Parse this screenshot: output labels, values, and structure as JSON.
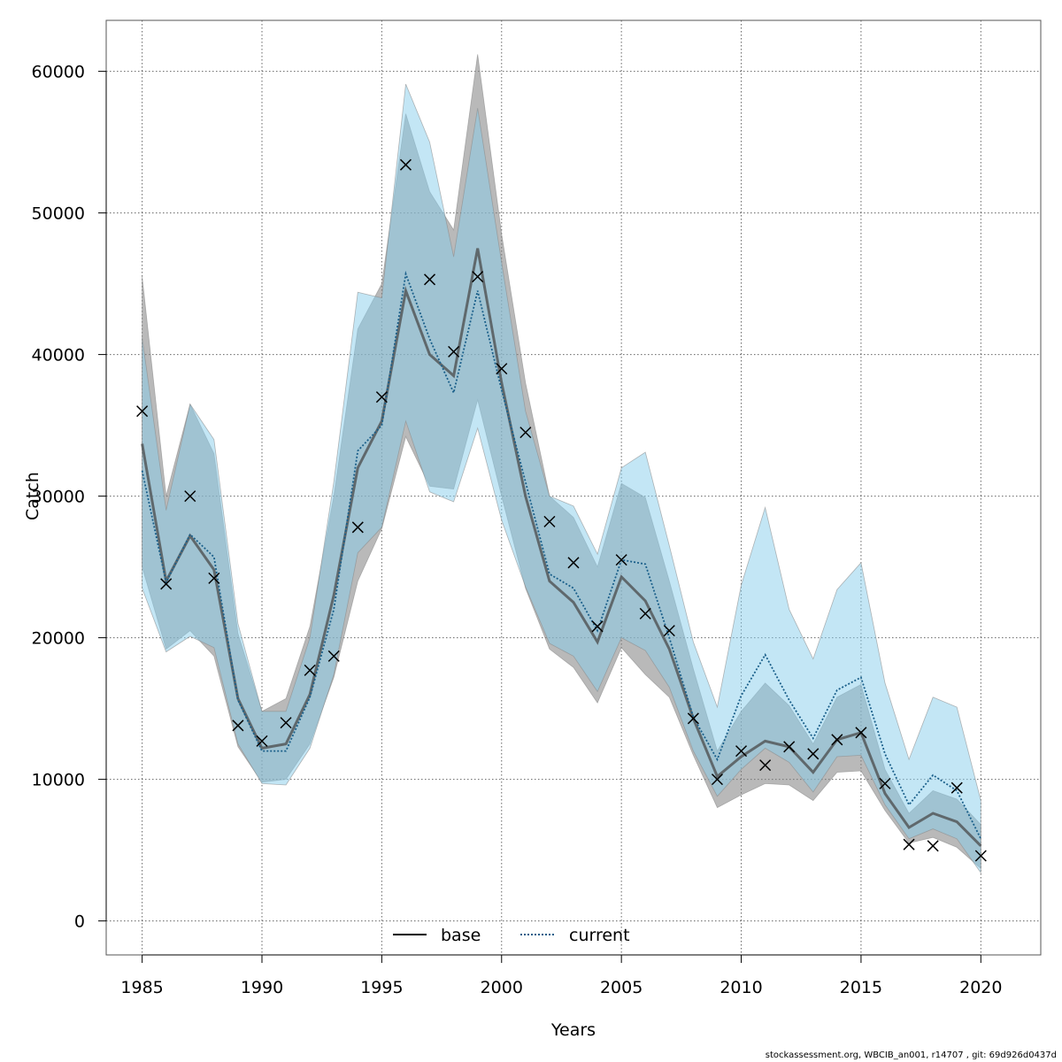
{
  "chart_data": {
    "type": "line",
    "xlabel": "Years",
    "ylabel": "Catch",
    "xlim": [
      1983.5,
      2022.5
    ],
    "ylim": [
      -2400,
      63600
    ],
    "x_ticks": [
      1985,
      1990,
      1995,
      2000,
      2005,
      2010,
      2015,
      2020
    ],
    "y_ticks": [
      0,
      10000,
      20000,
      30000,
      40000,
      50000,
      60000
    ],
    "grid": true,
    "legend_position": "bottom",
    "x": [
      1985,
      1986,
      1987,
      1988,
      1989,
      1990,
      1991,
      1992,
      1993,
      1994,
      1995,
      1996,
      1997,
      1998,
      1999,
      2000,
      2001,
      2002,
      2003,
      2004,
      2005,
      2006,
      2007,
      2008,
      2009,
      2010,
      2011,
      2012,
      2013,
      2014,
      2015,
      2016,
      2017,
      2018,
      2019,
      2020
    ],
    "observed": [
      36000,
      23800,
      30000,
      24200,
      13800,
      12700,
      14000,
      17700,
      18700,
      27800,
      37000,
      53400,
      45300,
      40200,
      45500,
      39000,
      34500,
      28200,
      25300,
      20800,
      25500,
      21700,
      20500,
      14300,
      10000,
      12000,
      11000,
      12300,
      11800,
      12800,
      13300,
      9700,
      5400,
      5300,
      9400,
      4600
    ],
    "series": [
      {
        "name": "base",
        "color": "#000000",
        "band_color": "#808080",
        "values": [
          33700,
          24000,
          27200,
          24800,
          15700,
          12200,
          12500,
          16000,
          23000,
          32000,
          35300,
          44500,
          40000,
          38500,
          47500,
          38000,
          30000,
          24000,
          22500,
          19700,
          24300,
          22600,
          19200,
          14300,
          10200,
          11600,
          12700,
          12300,
          10500,
          12800,
          13300,
          9000,
          6600,
          7600,
          7000,
          5300
        ],
        "lower": [
          25000,
          19200,
          20500,
          18700,
          12300,
          9800,
          10000,
          12500,
          17200,
          24000,
          27700,
          34200,
          30700,
          30500,
          36800,
          30000,
          23500,
          19200,
          17900,
          15400,
          19300,
          17400,
          15800,
          11700,
          8000,
          8900,
          9700,
          9600,
          8500,
          10500,
          10600,
          7800,
          5500,
          5900,
          5200,
          3700
        ],
        "upper": [
          45500,
          30000,
          36500,
          33000,
          20300,
          14800,
          15700,
          20800,
          30000,
          41800,
          45000,
          57000,
          51500,
          48800,
          61200,
          48500,
          38000,
          30000,
          28500,
          25000,
          30900,
          29900,
          24000,
          17800,
          12000,
          14800,
          16800,
          15200,
          12500,
          15800,
          16700,
          10700,
          7600,
          9200,
          8600,
          6800
        ]
      },
      {
        "name": "current",
        "color": "#1a5f8a",
        "band_color": "#87ceeb",
        "values": [
          31800,
          23900,
          27300,
          25700,
          15600,
          12000,
          12000,
          15800,
          22000,
          33200,
          35000,
          45700,
          41100,
          37300,
          44500,
          37500,
          31000,
          24500,
          23500,
          20500,
          25500,
          25200,
          20000,
          14400,
          11400,
          15900,
          18800,
          15600,
          12900,
          16300,
          17200,
          11800,
          8200,
          10300,
          9200,
          5800
        ],
        "lower": [
          23500,
          19000,
          20100,
          19300,
          12500,
          9700,
          9600,
          12200,
          17400,
          26000,
          27800,
          35300,
          30300,
          29600,
          34800,
          28300,
          23600,
          19600,
          18700,
          16200,
          20000,
          19100,
          16500,
          12000,
          8800,
          10700,
          12200,
          11200,
          9100,
          11600,
          11700,
          8200,
          5800,
          6500,
          5800,
          3400
        ],
        "upper": [
          41200,
          29000,
          36500,
          34000,
          21000,
          14800,
          14800,
          20000,
          31000,
          44400,
          44000,
          59100,
          55000,
          46900,
          57400,
          46500,
          36000,
          30000,
          29300,
          25900,
          32000,
          33100,
          26500,
          19700,
          15100,
          23700,
          29200,
          22000,
          18500,
          23400,
          25300,
          16800,
          11400,
          15800,
          15100,
          8500
        ]
      }
    ]
  },
  "footer": "stockassessment.org, WBCIB_an001, r14707 , git: 69d926d0437d"
}
